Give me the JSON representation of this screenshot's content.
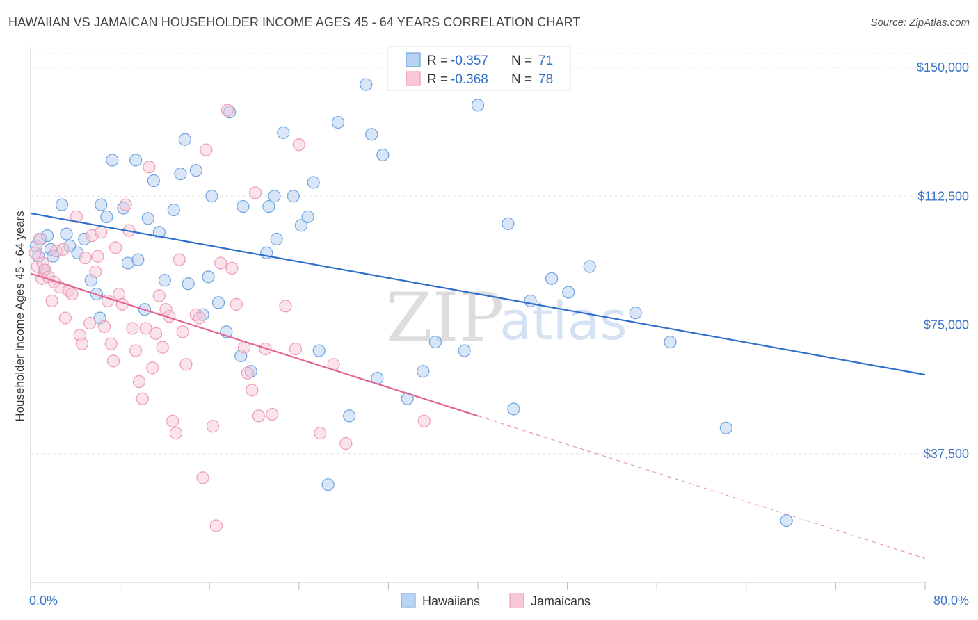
{
  "title": "HAWAIIAN VS JAMAICAN HOUSEHOLDER INCOME AGES 45 - 64 YEARS CORRELATION CHART",
  "source": "Source: ZipAtlas.com",
  "watermark": {
    "zip": "ZIP",
    "atlas": "atlas"
  },
  "colors": {
    "hawaiian": "#6fa3e0",
    "hawaiian_fill": "#b8d2f3",
    "hawaiian_line": "#2f6fcc",
    "jamaican": "#ef9ab8",
    "jamaican_fill": "#f8c8d8",
    "jamaican_line": "#e06690"
  },
  "stats": [
    {
      "r_label": "R =",
      "r_value": "-0.357",
      "n_label": "N =",
      "n_value": "71"
    },
    {
      "r_label": "R =",
      "r_value": "-0.368",
      "n_label": "N =",
      "n_value": "78"
    }
  ],
  "chart_data": {
    "type": "scatter",
    "title": "HAWAIIAN VS JAMAICAN HOUSEHOLDER INCOME AGES 45 - 64 YEARS CORRELATION CHART",
    "xlabel": "",
    "ylabel": "Householder Income Ages 45 - 64 years",
    "xlim": [
      0,
      80
    ],
    "ylim": [
      0,
      155000
    ],
    "x_tick_labels": [
      "0.0%",
      "80.0%"
    ],
    "y_ticks": [
      37500,
      75000,
      112500,
      150000
    ],
    "y_tick_labels": [
      "$37,500",
      "$75,000",
      "$112,500",
      "$150,000"
    ],
    "grid": true,
    "legend": "bottom-center",
    "series": [
      {
        "name": "Hawaiians",
        "trend": {
          "x0": 0,
          "y0": 107500,
          "x1": 80,
          "y1": 60500
        },
        "points": [
          [
            0.5,
            98000
          ],
          [
            0.7,
            95000
          ],
          [
            0.9,
            100000
          ],
          [
            1.2,
            91000
          ],
          [
            1.5,
            101000
          ],
          [
            1.8,
            97000
          ],
          [
            2.0,
            95000
          ],
          [
            2.8,
            110000
          ],
          [
            3.2,
            101500
          ],
          [
            3.5,
            98000
          ],
          [
            4.2,
            96000
          ],
          [
            4.8,
            100000
          ],
          [
            5.4,
            88000
          ],
          [
            5.9,
            84000
          ],
          [
            6.2,
            77000
          ],
          [
            6.3,
            110000
          ],
          [
            6.8,
            106500
          ],
          [
            7.3,
            123000
          ],
          [
            8.3,
            109000
          ],
          [
            8.7,
            93000
          ],
          [
            9.4,
            123000
          ],
          [
            9.6,
            94000
          ],
          [
            10.2,
            79500
          ],
          [
            10.5,
            106000
          ],
          [
            11.0,
            117000
          ],
          [
            11.5,
            102000
          ],
          [
            12.0,
            88000
          ],
          [
            12.8,
            108500
          ],
          [
            13.4,
            119000
          ],
          [
            13.8,
            129000
          ],
          [
            14.1,
            87000
          ],
          [
            14.8,
            120000
          ],
          [
            15.4,
            78000
          ],
          [
            15.9,
            89000
          ],
          [
            16.2,
            112500
          ],
          [
            16.8,
            81500
          ],
          [
            17.5,
            73000
          ],
          [
            17.8,
            137000
          ],
          [
            18.8,
            66000
          ],
          [
            19.0,
            109500
          ],
          [
            19.7,
            61500
          ],
          [
            21.1,
            96000
          ],
          [
            21.3,
            109500
          ],
          [
            21.8,
            112500
          ],
          [
            22.0,
            100000
          ],
          [
            22.6,
            131000
          ],
          [
            23.5,
            112500
          ],
          [
            24.2,
            104000
          ],
          [
            24.8,
            106500
          ],
          [
            25.3,
            116500
          ],
          [
            25.8,
            67500
          ],
          [
            26.6,
            28500
          ],
          [
            27.5,
            134000
          ],
          [
            28.5,
            48500
          ],
          [
            30.0,
            145000
          ],
          [
            30.5,
            130500
          ],
          [
            31.0,
            59500
          ],
          [
            31.5,
            124500
          ],
          [
            33.0,
            149000
          ],
          [
            33.7,
            53500
          ],
          [
            35.1,
            61500
          ],
          [
            36.2,
            70000
          ],
          [
            38.8,
            67500
          ],
          [
            40.0,
            139000
          ],
          [
            42.7,
            104500
          ],
          [
            43.2,
            50500
          ],
          [
            44.7,
            82000
          ],
          [
            46.6,
            88500
          ],
          [
            48.1,
            84500
          ],
          [
            50.0,
            92000
          ],
          [
            54.1,
            78500
          ],
          [
            57.2,
            70000
          ],
          [
            62.2,
            45000
          ],
          [
            67.6,
            18000
          ]
        ]
      },
      {
        "name": "Jamaicans",
        "trend": {
          "x0": 0,
          "y0": 90000,
          "x1": 40,
          "y1": 48500
        },
        "trend_ext": {
          "x0": 40,
          "y0": 48500,
          "x1": 80,
          "y1": 7000
        },
        "points": [
          [
            0.4,
            96000
          ],
          [
            0.6,
            92000
          ],
          [
            0.8,
            100000
          ],
          [
            1.0,
            88500
          ],
          [
            1.1,
            93000
          ],
          [
            1.3,
            91000
          ],
          [
            1.6,
            89000
          ],
          [
            1.9,
            82000
          ],
          [
            2.1,
            87500
          ],
          [
            2.3,
            96500
          ],
          [
            2.6,
            86000
          ],
          [
            2.9,
            97000
          ],
          [
            3.1,
            77000
          ],
          [
            3.4,
            85000
          ],
          [
            3.7,
            84000
          ],
          [
            4.1,
            106500
          ],
          [
            4.4,
            72000
          ],
          [
            4.6,
            69500
          ],
          [
            4.9,
            94500
          ],
          [
            5.3,
            75500
          ],
          [
            5.5,
            101000
          ],
          [
            5.8,
            90500
          ],
          [
            6.0,
            95000
          ],
          [
            6.3,
            102000
          ],
          [
            6.6,
            74500
          ],
          [
            6.9,
            82000
          ],
          [
            7.2,
            69500
          ],
          [
            7.4,
            64500
          ],
          [
            7.6,
            97500
          ],
          [
            7.9,
            84000
          ],
          [
            8.2,
            81000
          ],
          [
            8.5,
            110000
          ],
          [
            8.8,
            102500
          ],
          [
            9.1,
            74000
          ],
          [
            9.4,
            67500
          ],
          [
            9.7,
            58500
          ],
          [
            10.0,
            53500
          ],
          [
            10.3,
            74000
          ],
          [
            10.6,
            121000
          ],
          [
            10.9,
            62500
          ],
          [
            11.2,
            72500
          ],
          [
            11.5,
            83500
          ],
          [
            11.8,
            68500
          ],
          [
            12.1,
            79500
          ],
          [
            12.4,
            77500
          ],
          [
            12.7,
            47000
          ],
          [
            13.0,
            43500
          ],
          [
            13.3,
            94000
          ],
          [
            13.6,
            73000
          ],
          [
            13.9,
            63500
          ],
          [
            14.8,
            78000
          ],
          [
            15.1,
            77000
          ],
          [
            15.4,
            30500
          ],
          [
            15.7,
            126000
          ],
          [
            16.3,
            45500
          ],
          [
            16.6,
            16500
          ],
          [
            17.0,
            93000
          ],
          [
            17.6,
            137500
          ],
          [
            18.0,
            91500
          ],
          [
            18.4,
            81000
          ],
          [
            19.1,
            68500
          ],
          [
            19.4,
            61000
          ],
          [
            19.8,
            56000
          ],
          [
            20.1,
            113500
          ],
          [
            20.4,
            48500
          ],
          [
            21.0,
            68000
          ],
          [
            21.6,
            49000
          ],
          [
            22.8,
            80500
          ],
          [
            23.7,
            68000
          ],
          [
            24.0,
            127500
          ],
          [
            25.9,
            43500
          ],
          [
            27.1,
            63500
          ],
          [
            28.2,
            40500
          ],
          [
            35.2,
            47000
          ]
        ]
      }
    ]
  },
  "legend": {
    "items": [
      "Hawaiians",
      "Jamaicans"
    ]
  }
}
